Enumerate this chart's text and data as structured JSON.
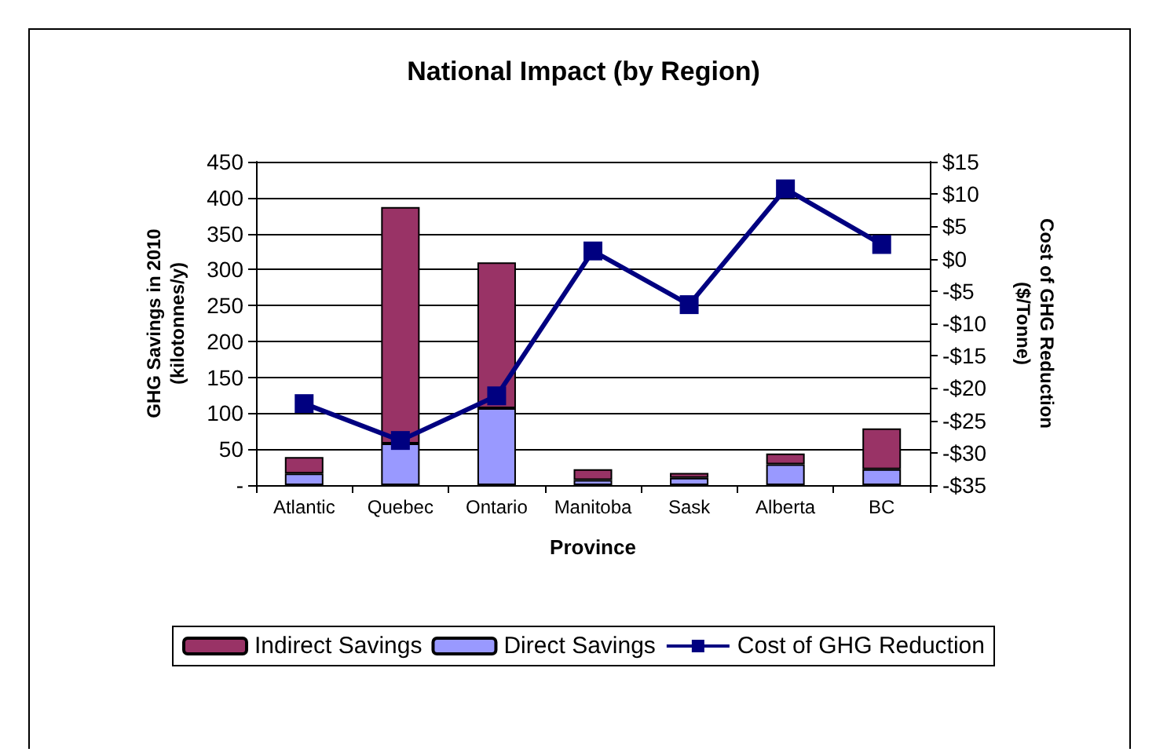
{
  "chart_data": {
    "type": "bar",
    "title": "National Impact (by Region)",
    "xlabel": "Province",
    "ylabel": "GHG Savings in 2010\n(kilotonnes/y)",
    "y2label": "Cost of GHG Reduction\n($/Tonne)",
    "categories": [
      "Atlantic",
      "Quebec",
      "Ontario",
      "Manitoba",
      "Sask",
      "Alberta",
      "BC"
    ],
    "stacked": true,
    "series": [
      {
        "name": "Direct Savings",
        "color": "#9999ff",
        "values": [
          16,
          58,
          107,
          7,
          10,
          29,
          22
        ]
      },
      {
        "name": "Indirect Savings",
        "color": "#993366",
        "values": [
          23,
          329,
          203,
          15,
          7,
          15,
          57
        ]
      },
      {
        "name": "Cost of GHG Reduction",
        "type": "line",
        "axis": "y2",
        "color": "#000080",
        "marker": "square",
        "values": [
          -22.4,
          -28.1,
          -21.2,
          1.2,
          -7.1,
          10.8,
          2.2
        ]
      }
    ],
    "ylim": [
      0,
      450
    ],
    "yticks": [
      {
        "value": 0,
        "label": "-"
      },
      50,
      100,
      150,
      200,
      250,
      300,
      350,
      400,
      450
    ],
    "y2lim": [
      -35,
      15
    ],
    "y2ticks": [
      {
        "value": -35,
        "label": "-$35"
      },
      {
        "value": -30,
        "label": "-$30"
      },
      {
        "value": -25,
        "label": "-$25"
      },
      {
        "value": -20,
        "label": "-$20"
      },
      {
        "value": -15,
        "label": "-$15"
      },
      {
        "value": -10,
        "label": "-$10"
      },
      {
        "value": -5,
        "label": "-$5"
      },
      {
        "value": 0,
        "label": "$0"
      },
      {
        "value": 5,
        "label": "$5"
      },
      {
        "value": 10,
        "label": "$10"
      },
      {
        "value": 15,
        "label": "$15"
      }
    ],
    "grid": "y",
    "legend": "bottom"
  }
}
